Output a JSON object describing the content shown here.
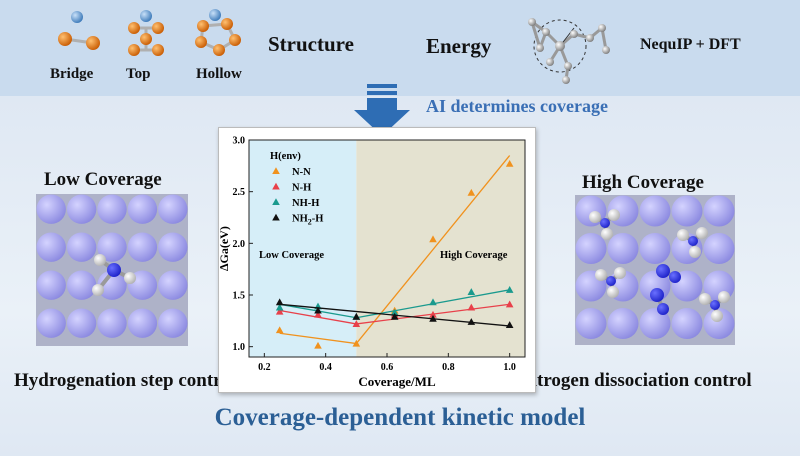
{
  "header": {
    "structure_types": [
      "Bridge",
      "Top",
      "Hollow"
    ],
    "structure_label": "Structure",
    "energy_label": "Energy",
    "method_label": "NequIP + DFT"
  },
  "arrow_label": "AI determines coverage",
  "left_panel": {
    "title": "Low Coverage",
    "caption": "Hydrogenation step control"
  },
  "right_panel": {
    "title": "High Coverage",
    "caption": "Nitrogen dissociation control"
  },
  "footer_title": "Coverage-dependent kinetic model",
  "colors": {
    "arrow": "#2e6db4",
    "footer_text": "#2b5f95",
    "arrow_label_text": "#3a6fb5",
    "low_region": "#d6eef8",
    "high_region": "#e4e2d0",
    "surface_atom": "#8b89e0",
    "nitrogen": "#1c21c8",
    "hydrogen": "#f0f0f0"
  },
  "chart_data": {
    "type": "scatter",
    "xlabel": "Coverage/ML",
    "ylabel": "∆Ga(eV)",
    "xlim": [
      0.15,
      1.05
    ],
    "ylim": [
      0.9,
      3.0
    ],
    "xticks": [
      "0.2",
      "0.4",
      "0.6",
      "0.8",
      "1.0"
    ],
    "yticks": [
      "1.0",
      "1.5",
      "2.0",
      "2.5",
      "3.0"
    ],
    "legend_title": "H(env)",
    "legend_position": "top-left",
    "region_split_x": 0.5,
    "region_labels": [
      "Low Coverage",
      "High Coverage"
    ],
    "series": [
      {
        "name": "N-N",
        "color": "#f0921e",
        "marker": "triangle",
        "x": [
          0.25,
          0.375,
          0.5,
          0.625,
          0.75,
          0.875,
          1.0
        ],
        "y": [
          1.16,
          1.01,
          1.03,
          1.35,
          2.04,
          2.49,
          2.77
        ],
        "fit": [
          [
            0.25,
            1.13
          ],
          [
            0.5,
            1.03
          ],
          [
            1.0,
            2.85
          ]
        ]
      },
      {
        "name": "N-H",
        "color": "#e8404a",
        "marker": "triangle",
        "x": [
          0.25,
          0.375,
          0.5,
          0.625,
          0.75,
          0.875,
          1.0
        ],
        "y": [
          1.34,
          1.31,
          1.22,
          1.31,
          1.31,
          1.38,
          1.41
        ],
        "fit": [
          [
            0.25,
            1.35
          ],
          [
            0.5,
            1.22
          ],
          [
            1.0,
            1.41
          ]
        ]
      },
      {
        "name": "NH-H",
        "color": "#1a9a8e",
        "marker": "triangle",
        "x": [
          0.25,
          0.375,
          0.5,
          0.625,
          0.75,
          0.875,
          1.0
        ],
        "y": [
          1.38,
          1.39,
          1.29,
          1.33,
          1.43,
          1.53,
          1.55
        ],
        "fit": [
          [
            0.25,
            1.41
          ],
          [
            0.5,
            1.28
          ],
          [
            1.0,
            1.55
          ]
        ]
      },
      {
        "name": "NH2-H",
        "color": "#111111",
        "marker": "triangle",
        "x": [
          0.25,
          0.375,
          0.5,
          0.625,
          0.75,
          0.875,
          1.0
        ],
        "y": [
          1.43,
          1.35,
          1.29,
          1.29,
          1.27,
          1.24,
          1.21
        ],
        "fit": [
          [
            0.25,
            1.41
          ],
          [
            1.0,
            1.2
          ]
        ]
      }
    ]
  }
}
